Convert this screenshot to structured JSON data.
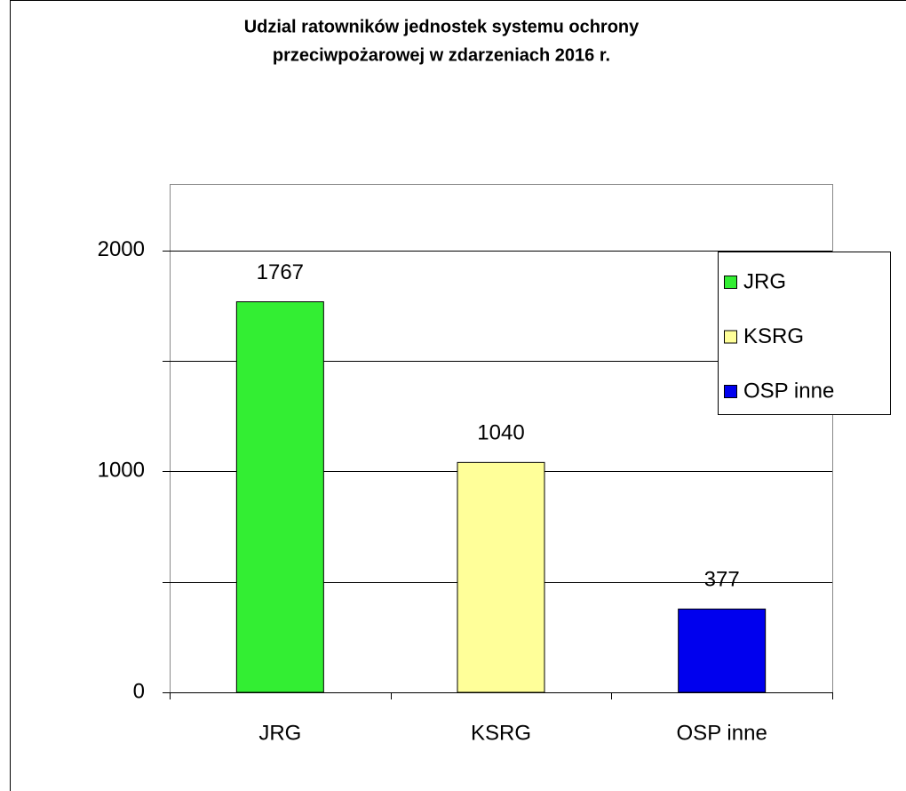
{
  "chart_data": {
    "type": "bar",
    "title": [
      "Udzial ratowników jednostek systemu ochrony",
      "przeciwpożarowej w zdarzeniach 2016 r."
    ],
    "categories": [
      "JRG",
      "KSRG",
      "OSP inne"
    ],
    "values": [
      1767,
      1040,
      377
    ],
    "colors": [
      "#33ee33",
      "#ffff99",
      "#0000ee"
    ],
    "ylim": [
      0,
      2300
    ],
    "yticks": [
      0,
      1000,
      2000
    ],
    "minor_yticks": [
      500,
      1500
    ],
    "grid": true,
    "legend": "right"
  }
}
